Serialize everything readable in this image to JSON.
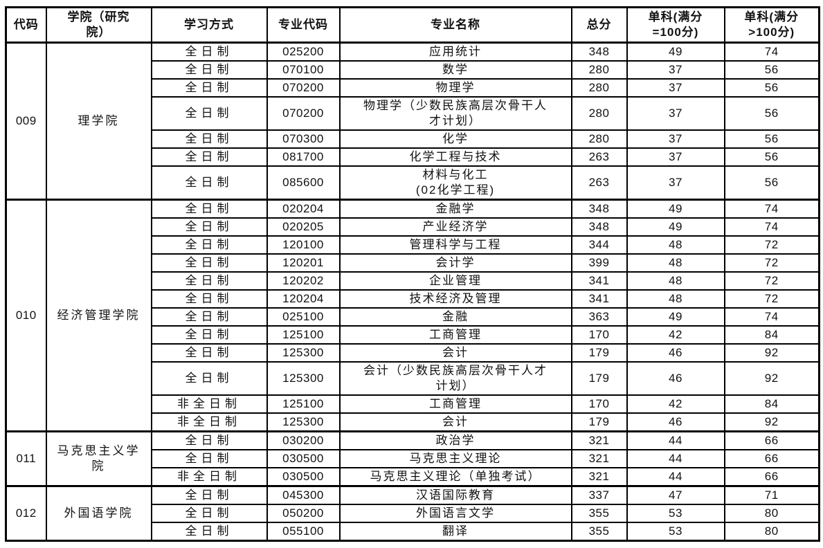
{
  "table": {
    "headers": [
      "代码",
      "学院（研究\n院）",
      "学习方式",
      "专业代码",
      "专业名称",
      "总分",
      "单科(满分\n=100分)",
      "单科(满分\n>100分)"
    ],
    "groups": [
      {
        "code": "009",
        "college": "理学院",
        "rows": [
          {
            "mode": "全日制",
            "major_code": "025200",
            "major_name": "应用统计",
            "total": "348",
            "single_eq100": "49",
            "single_gt100": "74"
          },
          {
            "mode": "全日制",
            "major_code": "070100",
            "major_name": "数学",
            "total": "280",
            "single_eq100": "37",
            "single_gt100": "56"
          },
          {
            "mode": "全日制",
            "major_code": "070200",
            "major_name": "物理学",
            "total": "280",
            "single_eq100": "37",
            "single_gt100": "56"
          },
          {
            "mode": "全日制",
            "major_code": "070200",
            "major_name": "物理学（少数民族高层次骨干人\n才计划）",
            "total": "280",
            "single_eq100": "37",
            "single_gt100": "56"
          },
          {
            "mode": "全日制",
            "major_code": "070300",
            "major_name": "化学",
            "total": "280",
            "single_eq100": "37",
            "single_gt100": "56"
          },
          {
            "mode": "全日制",
            "major_code": "081700",
            "major_name": "化学工程与技术",
            "total": "263",
            "single_eq100": "37",
            "single_gt100": "56"
          },
          {
            "mode": "全日制",
            "major_code": "085600",
            "major_name": "材料与化工\n(02化学工程)",
            "total": "263",
            "single_eq100": "37",
            "single_gt100": "56"
          }
        ]
      },
      {
        "code": "010",
        "college": "经济管理学院",
        "rows": [
          {
            "mode": "全日制",
            "major_code": "020204",
            "major_name": "金融学",
            "total": "348",
            "single_eq100": "49",
            "single_gt100": "74"
          },
          {
            "mode": "全日制",
            "major_code": "020205",
            "major_name": "产业经济学",
            "total": "348",
            "single_eq100": "49",
            "single_gt100": "74"
          },
          {
            "mode": "全日制",
            "major_code": "120100",
            "major_name": "管理科学与工程",
            "total": "344",
            "single_eq100": "48",
            "single_gt100": "72"
          },
          {
            "mode": "全日制",
            "major_code": "120201",
            "major_name": "会计学",
            "total": "399",
            "single_eq100": "48",
            "single_gt100": "72"
          },
          {
            "mode": "全日制",
            "major_code": "120202",
            "major_name": "企业管理",
            "total": "341",
            "single_eq100": "48",
            "single_gt100": "72"
          },
          {
            "mode": "全日制",
            "major_code": "120204",
            "major_name": "技术经济及管理",
            "total": "341",
            "single_eq100": "48",
            "single_gt100": "72"
          },
          {
            "mode": "全日制",
            "major_code": "025100",
            "major_name": "金融",
            "total": "363",
            "single_eq100": "49",
            "single_gt100": "74"
          },
          {
            "mode": "全日制",
            "major_code": "125100",
            "major_name": "工商管理",
            "total": "170",
            "single_eq100": "42",
            "single_gt100": "84"
          },
          {
            "mode": "全日制",
            "major_code": "125300",
            "major_name": "会计",
            "total": "179",
            "single_eq100": "46",
            "single_gt100": "92"
          },
          {
            "mode": "全日制",
            "major_code": "125300",
            "major_name": "会计（少数民族高层次骨干人才\n计划）",
            "total": "179",
            "single_eq100": "46",
            "single_gt100": "92"
          },
          {
            "mode": "非全日制",
            "major_code": "125100",
            "major_name": "工商管理",
            "total": "170",
            "single_eq100": "42",
            "single_gt100": "84"
          },
          {
            "mode": "非全日制",
            "major_code": "125300",
            "major_name": "会计",
            "total": "179",
            "single_eq100": "46",
            "single_gt100": "92"
          }
        ]
      },
      {
        "code": "011",
        "college": "马克思主义学\n院",
        "rows": [
          {
            "mode": "全日制",
            "major_code": "030200",
            "major_name": "政治学",
            "total": "321",
            "single_eq100": "44",
            "single_gt100": "66"
          },
          {
            "mode": "全日制",
            "major_code": "030500",
            "major_name": "马克思主义理论",
            "total": "321",
            "single_eq100": "44",
            "single_gt100": "66"
          },
          {
            "mode": "非全日制",
            "major_code": "030500",
            "major_name": "马克思主义理论（单独考试）",
            "total": "321",
            "single_eq100": "44",
            "single_gt100": "66"
          }
        ]
      },
      {
        "code": "012",
        "college": "外国语学院",
        "rows": [
          {
            "mode": "全日制",
            "major_code": "045300",
            "major_name": "汉语国际教育",
            "total": "337",
            "single_eq100": "47",
            "single_gt100": "71"
          },
          {
            "mode": "全日制",
            "major_code": "050200",
            "major_name": "外国语言文学",
            "total": "355",
            "single_eq100": "53",
            "single_gt100": "80"
          },
          {
            "mode": "全日制",
            "major_code": "055100",
            "major_name": "翻译",
            "total": "355",
            "single_eq100": "53",
            "single_gt100": "80"
          }
        ]
      }
    ]
  }
}
